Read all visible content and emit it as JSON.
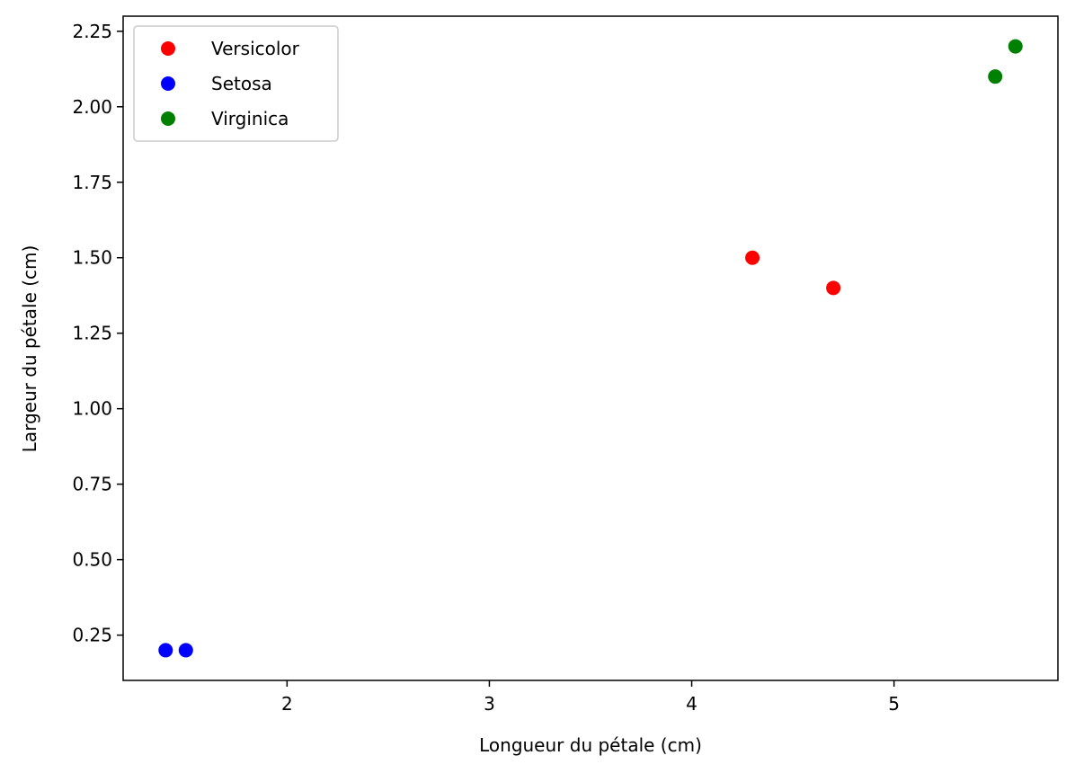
{
  "chart_data": {
    "type": "scatter",
    "title": "",
    "xlabel": "Longueur du pétale (cm)",
    "ylabel": "Largeur du pétale (cm)",
    "xlim": [
      1.19,
      5.81
    ],
    "ylim": [
      0.1,
      2.3
    ],
    "xticks": [
      2,
      3,
      4,
      5
    ],
    "xtick_labels": [
      "2",
      "3",
      "4",
      "5"
    ],
    "yticks": [
      0.25,
      0.5,
      0.75,
      1.0,
      1.25,
      1.5,
      1.75,
      2.0,
      2.25
    ],
    "ytick_labels": [
      "0.25",
      "0.50",
      "0.75",
      "1.00",
      "1.25",
      "1.50",
      "1.75",
      "2.00",
      "2.25"
    ],
    "grid": false,
    "legend": "top-left",
    "series": [
      {
        "name": "Versicolor",
        "color": "#ff0000",
        "points": [
          [
            4.3,
            1.5
          ],
          [
            4.7,
            1.4
          ]
        ]
      },
      {
        "name": "Setosa",
        "color": "#0000ff",
        "points": [
          [
            1.4,
            0.2
          ],
          [
            1.5,
            0.2
          ]
        ]
      },
      {
        "name": "Virginica",
        "color": "#008000",
        "points": [
          [
            5.5,
            2.1
          ],
          [
            5.6,
            2.2
          ]
        ]
      }
    ]
  }
}
